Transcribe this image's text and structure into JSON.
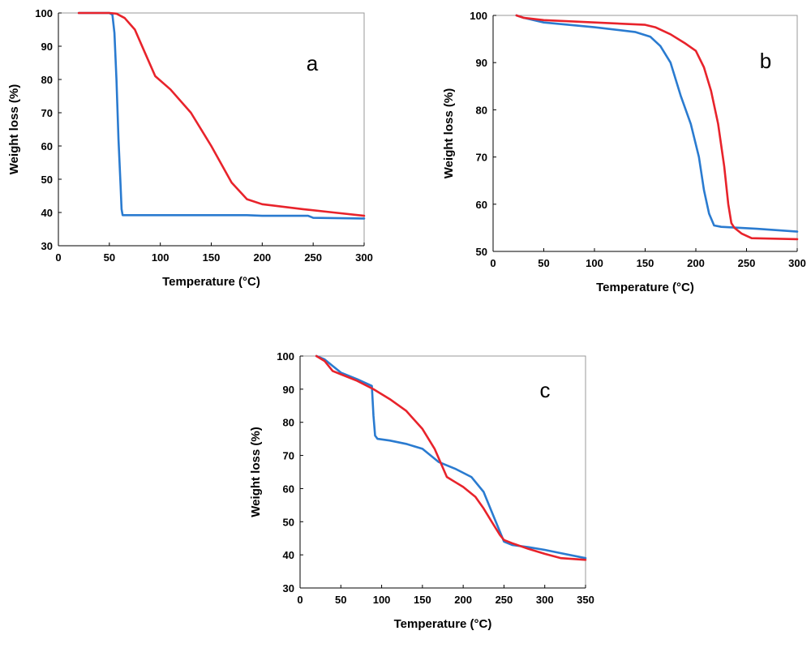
{
  "chart_data": [
    {
      "type": "line",
      "panel_label": "a",
      "xlabel": "Temperature (°C)",
      "ylabel": "Weight loss (%)",
      "xlim": [
        0,
        300
      ],
      "ylim": [
        30,
        100
      ],
      "xticks": [
        0,
        50,
        100,
        150,
        200,
        250,
        300
      ],
      "yticks": [
        30,
        40,
        50,
        60,
        70,
        80,
        90,
        100
      ],
      "series": [
        {
          "color": "#2a7bd0",
          "x": [
            20,
            50,
            53,
            55,
            57,
            59,
            61,
            62,
            63,
            100,
            150,
            185,
            200,
            245,
            250,
            300
          ],
          "y": [
            100,
            100,
            99.5,
            94,
            80,
            62,
            48,
            41,
            39.2,
            39.2,
            39.2,
            39.2,
            39,
            39,
            38.4,
            38.2
          ]
        },
        {
          "color": "#e8232b",
          "x": [
            20,
            50,
            57,
            65,
            75,
            85,
            95,
            110,
            130,
            150,
            170,
            185,
            200,
            240,
            270,
            300
          ],
          "y": [
            100,
            100,
            99.8,
            98.5,
            95,
            88,
            81,
            77,
            70,
            60,
            49,
            44,
            42.5,
            41,
            40,
            39
          ]
        }
      ]
    },
    {
      "type": "line",
      "panel_label": "b",
      "xlabel": "Temperature (°C)",
      "ylabel": "Weight loss (%)",
      "xlim": [
        0,
        300
      ],
      "ylim": [
        50,
        100
      ],
      "xticks": [
        0,
        50,
        100,
        150,
        200,
        250,
        300
      ],
      "yticks": [
        50,
        60,
        70,
        80,
        90,
        100
      ],
      "series": [
        {
          "color": "#2a7bd0",
          "x": [
            23,
            30,
            50,
            100,
            140,
            155,
            165,
            175,
            185,
            195,
            203,
            208,
            213,
            218,
            225,
            260,
            300
          ],
          "y": [
            100,
            99.5,
            98.5,
            97.5,
            96.5,
            95.5,
            93.5,
            90,
            83,
            77,
            70,
            63,
            58,
            55.5,
            55.2,
            54.8,
            54.2
          ]
        },
        {
          "color": "#e8232b",
          "x": [
            23,
            30,
            50,
            100,
            150,
            160,
            175,
            190,
            200,
            208,
            215,
            222,
            228,
            232,
            235,
            238,
            245,
            255,
            300
          ],
          "y": [
            100,
            99.5,
            99,
            98.5,
            98,
            97.5,
            96,
            94,
            92.5,
            89,
            84,
            77,
            68,
            60,
            56,
            55,
            53.8,
            52.8,
            52.6
          ]
        }
      ]
    },
    {
      "type": "line",
      "panel_label": "c",
      "xlabel": "Temperature (°C)",
      "ylabel": "Weight loss (%)",
      "xlim": [
        0,
        350
      ],
      "ylim": [
        30,
        100
      ],
      "xticks": [
        0,
        50,
        100,
        150,
        200,
        250,
        300,
        350
      ],
      "yticks": [
        30,
        40,
        50,
        60,
        70,
        80,
        90,
        100
      ],
      "series": [
        {
          "color": "#2a7bd0",
          "x": [
            20,
            30,
            40,
            50,
            70,
            88,
            90,
            92,
            95,
            110,
            130,
            150,
            170,
            190,
            210,
            225,
            235,
            245,
            250,
            260,
            280,
            300,
            320,
            350
          ],
          "y": [
            100,
            99,
            97,
            95,
            93,
            91,
            82,
            76,
            75,
            74.5,
            73.5,
            72,
            68,
            66,
            63.5,
            59,
            53,
            47,
            44,
            43,
            42.3,
            41.5,
            40.5,
            39
          ]
        },
        {
          "color": "#e8232b",
          "x": [
            20,
            30,
            40,
            50,
            70,
            90,
            110,
            130,
            150,
            165,
            180,
            190,
            200,
            215,
            225,
            235,
            245,
            250,
            260,
            280,
            300,
            320,
            350
          ],
          "y": [
            100,
            98.5,
            95.5,
            94.5,
            92.5,
            90,
            87,
            83.5,
            78,
            72,
            63.5,
            62,
            60.5,
            57.5,
            54,
            50,
            46,
            44.5,
            43.5,
            41.8,
            40.3,
            39,
            38.5
          ]
        }
      ]
    }
  ]
}
